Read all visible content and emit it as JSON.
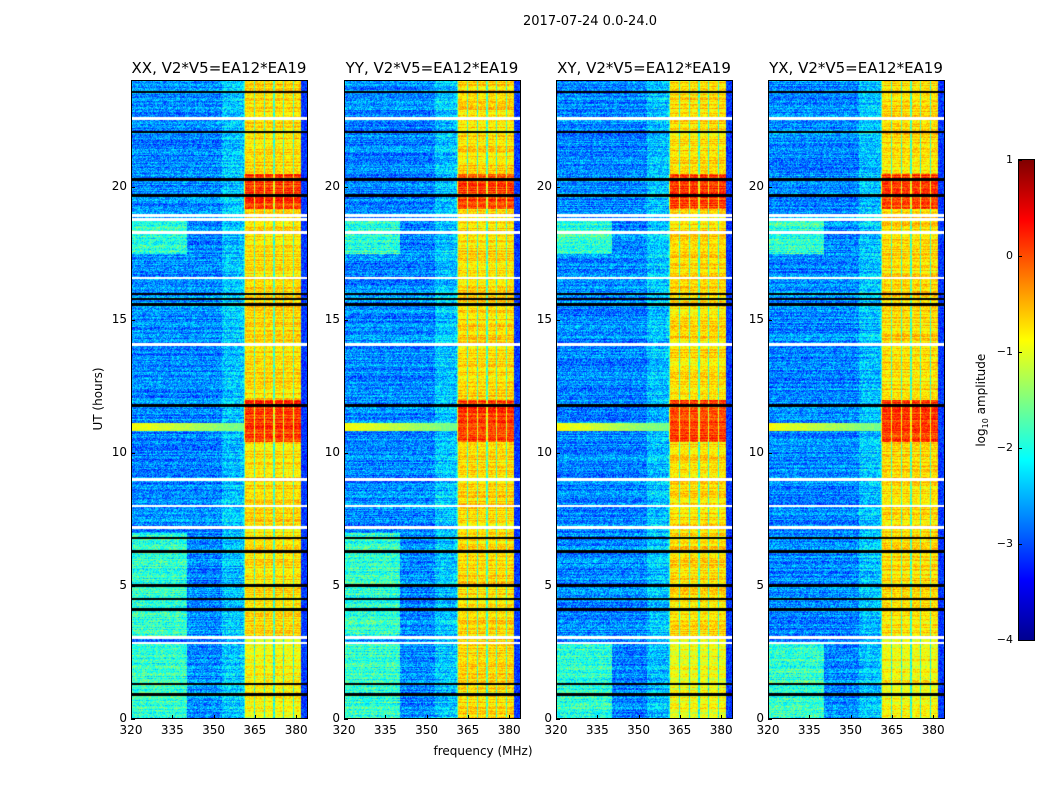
{
  "chart_data": {
    "type": "heatmap",
    "title": "2017-07-24 0.0-24.0",
    "xlabel": "frequency (MHz)",
    "ylabel": "UT (hours)",
    "xlim": [
      320,
      384.3
    ],
    "ylim": [
      0,
      24
    ],
    "xticks": [
      "320",
      "335",
      "350",
      "365",
      "380"
    ],
    "yticks": [
      "0",
      "5",
      "10",
      "15",
      "20"
    ],
    "panels": [
      {
        "title": "XX, V2*V5=EA12*EA19"
      },
      {
        "title": "YY, V2*V5=EA12*EA19"
      },
      {
        "title": "XY, V2*V5=EA12*EA19"
      },
      {
        "title": "YX, V2*V5=EA12*EA19"
      }
    ],
    "colorbar": {
      "label_main": "log",
      "label_sub": "10",
      "label_tail": " amplitude",
      "range": [
        -4,
        1
      ],
      "ticks": [
        "1",
        "0",
        "−1",
        "−2",
        "−3",
        "−4"
      ],
      "colormap": "jet"
    },
    "features": {
      "rfi_band_mhz": [
        361,
        382
      ],
      "strong_rfi_hours": [
        [
          10.4,
          12.0
        ],
        [
          19.2,
          20.5
        ]
      ],
      "flagged_white_hours": [
        2.85,
        3.05,
        7.2,
        8.0,
        9.0,
        14.1,
        16.6,
        18.3,
        18.8,
        18.95,
        22.6
      ],
      "black_row_hours": [
        0.9,
        1.3,
        4.1,
        4.5,
        5.0,
        6.3,
        6.8,
        11.8,
        15.6,
        15.8,
        16.0,
        19.7,
        20.3,
        22.1,
        23.6
      ]
    }
  }
}
